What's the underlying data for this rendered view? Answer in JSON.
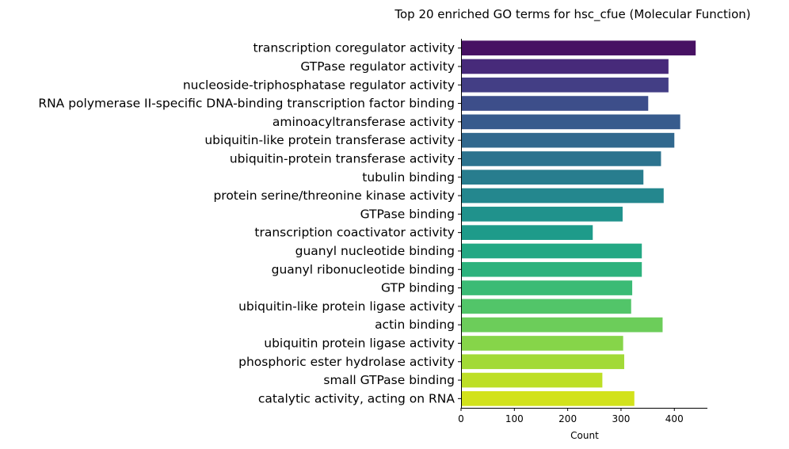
{
  "chart_data": {
    "type": "bar",
    "orientation": "horizontal",
    "title": "Top 20 enriched GO terms for hsc_cfue (Molecular Function)",
    "xlabel": "Count",
    "ylabel": "",
    "xlim": [
      0,
      462
    ],
    "xticks": [
      0,
      100,
      200,
      300,
      400
    ],
    "xtick_labels": [
      "0",
      "100",
      "200",
      "300",
      "400"
    ],
    "grid": false,
    "categories": [
      "transcription coregulator activity",
      "GTPase regulator activity",
      "nucleoside-triphosphatase regulator activity",
      "RNA polymerase II-specific DNA-binding transcription factor binding",
      "aminoacyltransferase activity",
      "ubiquitin-like protein transferase activity",
      "ubiquitin-protein transferase activity",
      "tubulin binding",
      "protein serine/threonine kinase activity",
      "GTPase binding",
      "transcription coactivator activity",
      "guanyl nucleotide binding",
      "guanyl ribonucleotide binding",
      "GTP binding",
      "ubiquitin-like protein ligase activity",
      "actin binding",
      "ubiquitin protein ligase activity",
      "phosphoric ester hydrolase activity",
      "small GTPase binding",
      "catalytic activity, acting on RNA"
    ],
    "values": [
      440,
      389,
      389,
      351,
      411,
      400,
      375,
      342,
      380,
      303,
      247,
      339,
      339,
      321,
      319,
      378,
      304,
      306,
      265,
      325
    ],
    "colors": [
      "#471163",
      "#472a7a",
      "#433e85",
      "#3d4e8a",
      "#375b8d",
      "#31688e",
      "#2c738e",
      "#287d8e",
      "#24878e",
      "#20928c",
      "#1e9b8a",
      "#24a884",
      "#2db27d",
      "#3bbb75",
      "#52c569",
      "#6ccd5a",
      "#86d549",
      "#a2da37",
      "#bddf26",
      "#d2e21b"
    ]
  }
}
